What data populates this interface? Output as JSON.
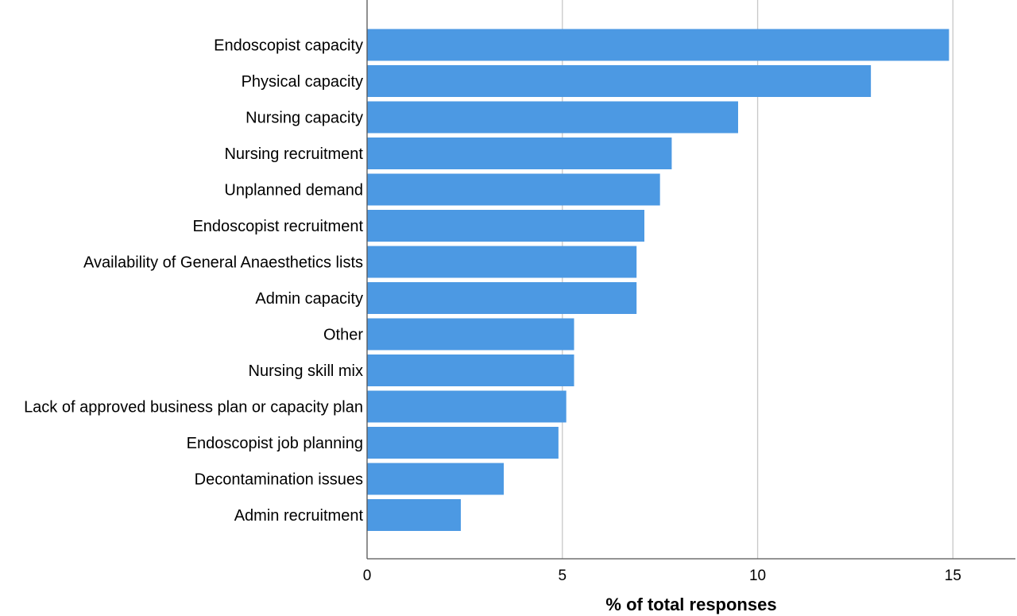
{
  "chart_data": {
    "type": "bar",
    "orientation": "horizontal",
    "categories": [
      "Endoscopist capacity",
      "Physical capacity",
      "Nursing capacity",
      "Nursing recruitment",
      "Unplanned demand",
      "Endoscopist recruitment",
      "Availability of General Anaesthetics lists",
      "Admin capacity",
      "Other",
      "Nursing skill mix",
      "Lack of approved business plan or capacity plan",
      "Endoscopist job planning",
      "Decontamination issues",
      "Admin recruitment"
    ],
    "values": [
      14.9,
      12.9,
      9.5,
      7.8,
      7.5,
      7.1,
      6.9,
      6.9,
      5.3,
      5.3,
      5.1,
      4.9,
      3.5,
      2.4
    ],
    "title": "",
    "xlabel": "% of total responses",
    "ylabel": "",
    "xlim": [
      0,
      16.6
    ],
    "xticks": [
      "0",
      "5",
      "10",
      "15"
    ],
    "grid": "vertical",
    "legend": "none",
    "bar_color": "#4c99e3",
    "grid_color": "#c8c8c8",
    "axis_color": "#555555"
  }
}
